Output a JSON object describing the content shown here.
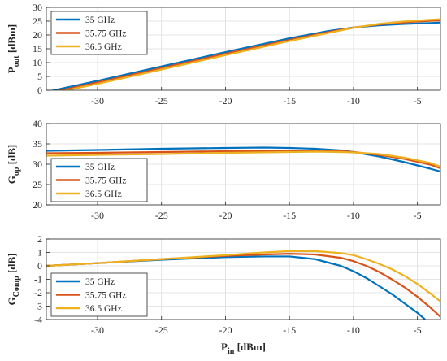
{
  "colors": {
    "35 GHz": "#0072BD",
    "35.75 GHz": "#D95319",
    "36.5 GHz": "#EDB120",
    "grid": "#dcdcdc",
    "axis": "#262626"
  },
  "chart_data": [
    {
      "type": "line",
      "ylabel_main": "P",
      "ylabel_sub": "out",
      "ylabel_unit": " [dBm]",
      "xlim": [
        -34,
        -3.2
      ],
      "ylim": [
        0,
        30
      ],
      "xticks": [
        -30,
        -25,
        -20,
        -15,
        -10,
        -5
      ],
      "yticks": [
        0,
        5,
        10,
        15,
        20,
        25,
        30
      ],
      "grid": true,
      "legend_position": "top-left",
      "series": [
        {
          "name": "35 GHz",
          "x": [
            -34,
            -33.2,
            -30,
            -25,
            -20,
            -15,
            -12,
            -10,
            -8,
            -6,
            -4,
            -3.2
          ],
          "y": [
            -0.6,
            0.2,
            3.4,
            8.6,
            13.8,
            18.8,
            21.4,
            22.7,
            23.5,
            24.0,
            24.3,
            24.5
          ]
        },
        {
          "name": "35.75 GHz",
          "x": [
            -34,
            -32.6,
            -30,
            -25,
            -20,
            -15,
            -12,
            -10,
            -8,
            -6,
            -4,
            -3.2
          ],
          "y": [
            -1.0,
            0.2,
            2.8,
            8.0,
            13.2,
            18.2,
            21.0,
            22.7,
            23.8,
            24.6,
            25.1,
            25.3
          ]
        },
        {
          "name": "36.5 GHz",
          "x": [
            -34,
            -32.2,
            -30,
            -25,
            -20,
            -15,
            -12,
            -10,
            -8,
            -6,
            -4,
            -3.2
          ],
          "y": [
            -1.6,
            0.2,
            2.3,
            7.5,
            12.7,
            17.8,
            20.7,
            22.6,
            24.0,
            24.9,
            25.5,
            25.7
          ]
        }
      ]
    },
    {
      "type": "line",
      "ylabel_main": "G",
      "ylabel_sub": "op",
      "ylabel_unit": " [dB]",
      "xlim": [
        -34,
        -3.2
      ],
      "ylim": [
        20,
        40
      ],
      "xticks": [
        -30,
        -25,
        -20,
        -15,
        -10,
        -5
      ],
      "yticks": [
        20,
        25,
        30,
        35,
        40
      ],
      "grid": true,
      "legend_position": "bottom-left",
      "series": [
        {
          "name": "35 GHz",
          "x": [
            -34,
            -30,
            -25,
            -20,
            -17,
            -15,
            -13,
            -11,
            -10,
            -8,
            -6,
            -4,
            -3.2
          ],
          "y": [
            33.3,
            33.5,
            33.8,
            34.0,
            34.1,
            34.0,
            33.8,
            33.4,
            33.0,
            31.9,
            30.5,
            28.9,
            28.2
          ]
        },
        {
          "name": "35.75 GHz",
          "x": [
            -34,
            -30,
            -25,
            -20,
            -15,
            -13,
            -11,
            -10,
            -8,
            -6,
            -4,
            -3.2
          ],
          "y": [
            32.7,
            32.8,
            33.0,
            33.2,
            33.3,
            33.3,
            33.2,
            33.0,
            32.3,
            31.3,
            29.9,
            29.0
          ]
        },
        {
          "name": "36.5 GHz",
          "x": [
            -34,
            -30,
            -25,
            -20,
            -15,
            -13,
            -11,
            -10,
            -8,
            -6,
            -4,
            -3.2
          ],
          "y": [
            32.1,
            32.3,
            32.5,
            32.8,
            33.0,
            33.1,
            33.0,
            32.9,
            32.5,
            31.6,
            30.3,
            29.4
          ]
        }
      ]
    },
    {
      "type": "line",
      "ylabel_main": "G",
      "ylabel_sub": "Comp",
      "ylabel_unit": " [dB]",
      "xlim": [
        -34,
        -3.2
      ],
      "ylim": [
        -4,
        2
      ],
      "xticks": [
        -30,
        -25,
        -20,
        -15,
        -10,
        -5
      ],
      "yticks": [
        -4,
        -3,
        -2,
        -1,
        0,
        1,
        2
      ],
      "xlabel_main": "P",
      "xlabel_sub": "in",
      "xlabel_unit": " [dBm]",
      "grid": true,
      "legend_position": "bottom-left",
      "series": [
        {
          "name": "35 GHz",
          "x": [
            -34,
            -30,
            -25,
            -20,
            -17,
            -15,
            -13,
            -11,
            -10,
            -9,
            -8,
            -7,
            -6,
            -5,
            -4.4
          ],
          "y": [
            0.0,
            0.2,
            0.45,
            0.65,
            0.7,
            0.7,
            0.5,
            0.0,
            -0.4,
            -0.9,
            -1.5,
            -2.1,
            -2.8,
            -3.5,
            -4.0
          ]
        },
        {
          "name": "35.75 GHz",
          "x": [
            -34,
            -30,
            -25,
            -20,
            -17,
            -15,
            -13,
            -11,
            -10,
            -9,
            -8,
            -7,
            -6,
            -5,
            -4,
            -3.2
          ],
          "y": [
            0.0,
            0.2,
            0.5,
            0.75,
            0.85,
            0.9,
            0.85,
            0.6,
            0.35,
            0.0,
            -0.45,
            -1.0,
            -1.6,
            -2.3,
            -3.1,
            -3.8
          ]
        },
        {
          "name": "36.5 GHz",
          "x": [
            -34,
            -30,
            -25,
            -20,
            -17,
            -15,
            -13,
            -11,
            -10,
            -9,
            -8,
            -7,
            -6,
            -5,
            -4,
            -3.2
          ],
          "y": [
            0.0,
            0.2,
            0.5,
            0.8,
            1.0,
            1.1,
            1.1,
            0.95,
            0.8,
            0.5,
            0.15,
            -0.25,
            -0.75,
            -1.35,
            -2.05,
            -2.65
          ]
        }
      ]
    }
  ]
}
